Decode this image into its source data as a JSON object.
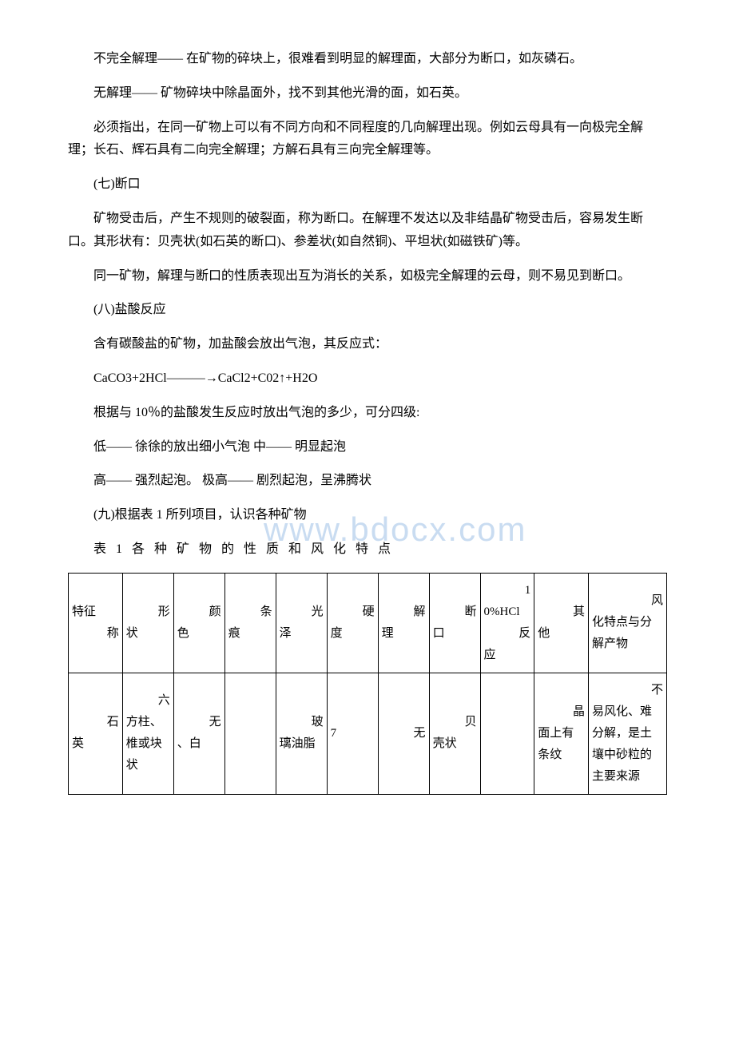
{
  "paragraphs": {
    "p1": "不完全解理—— 在矿物的碎块上，很难看到明显的解理面，大部分为断口，如灰磷石。",
    "p2": "无解理—— 矿物碎块中除晶面外，找不到其他光滑的面，如石英。",
    "p3": "必须指出，在同一矿物上可以有不同方向和不同程度的几向解理出现。例如云母具有一向极完全解理；长石、辉石具有二向完全解理；方解石具有三向完全解理等。",
    "h7": "(七)断口",
    "p4": "矿物受击后，产生不规则的破裂面，称为断口。在解理不发达以及非结晶矿物受击后，容易发生断口。其形状有：贝壳状(如石英的断口)、参差状(如自然铜)、平坦状(如磁铁矿)等。",
    "p5": "同一矿物，解理与断口的性质表现出互为消长的关系，如极完全解理的云母，则不易见到断口。",
    "h8": "(八)盐酸反应",
    "p6": "含有碳酸盐的矿物，加盐酸会放出气泡，其反应式：",
    "formula": "CaCO3+2HCl———→CaCl2+C02↑+H2O",
    "p7": "根据与 10％的盐酸发生反应时放出气泡的多少，可分四级:",
    "p8": "低—— 徐徐的放出细小气泡 中—— 明显起泡",
    "p9": "高—— 强烈起泡。 极高—— 剧烈起泡，呈沸腾状",
    "h9": "(九)根据表 1 所列项目，认识各种矿物",
    "tableTitle": "表 1 各 种 矿 物 的 性 质 和 风 化 特 点"
  },
  "watermark": "www.bdocx.com",
  "table": {
    "headers": {
      "name_top": "特征",
      "name_bottom": "称",
      "shape_top": "形",
      "shape_bottom": "状",
      "color_top": "颜",
      "color_bottom": "色",
      "streak_top": "条",
      "streak_bottom": "痕",
      "luster_top": "光",
      "luster_bottom": "泽",
      "hardness_top": "硬",
      "hardness_bottom": "度",
      "cleavage_top": "解",
      "cleavage_bottom": "理",
      "fracture_top": "断",
      "fracture_bottom": "口",
      "hcl_top": "1",
      "hcl_mid": "0%HCl",
      "hcl_bottom": "反",
      "hcl_last": "应",
      "other_top": "其",
      "other_bottom": "他",
      "weathering_top": "风",
      "weathering_bottom": "化特点与分解产物"
    },
    "row1": {
      "name_top": "石",
      "name_bottom": "英",
      "shape_top": "六",
      "shape_bottom": "方柱、椎或块状",
      "color_top": "无",
      "color_bottom": "、白",
      "streak": "",
      "luster_top": "玻",
      "luster_bottom": "璃油脂",
      "hardness": "7",
      "cleavage_top": "无",
      "cleavage_bottom": "",
      "fracture_top": "贝",
      "fracture_bottom": "壳状",
      "hcl": "",
      "other_top": "晶",
      "other_bottom": "面上有条纹",
      "weathering_top": "不",
      "weathering_bottom": "易风化、难分解，是土壤中砂粒的主要来源"
    }
  }
}
